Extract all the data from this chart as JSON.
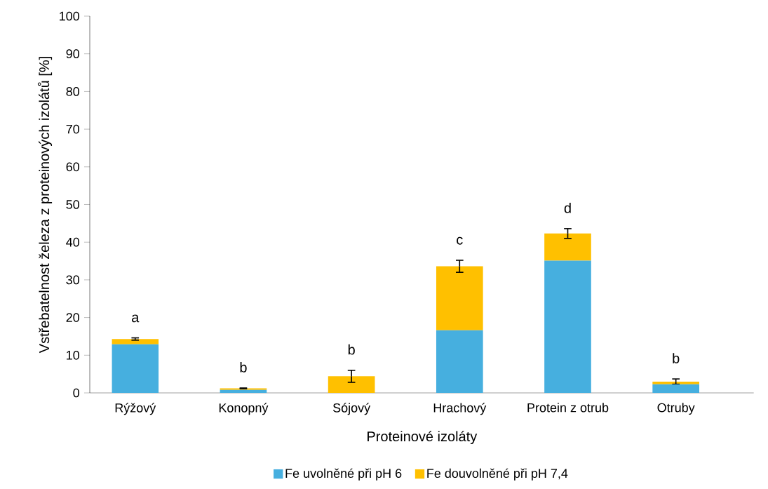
{
  "chart_data": {
    "type": "bar",
    "stacked": true,
    "xlabel": "Proteinové izoláty",
    "ylabel": "Vstřebatelnost železa z proteinových izolátů [%]",
    "categories": [
      "Rýžový",
      "Konopný",
      "Sójový",
      "Hrachový",
      "Protein z otrub",
      "Otruby"
    ],
    "series": [
      {
        "name": "Fe uvolněné při pH 6",
        "color": "#46afdf",
        "values": [
          12.9,
          0.8,
          0,
          16.6,
          35.1,
          2.3
        ]
      },
      {
        "name": "Fe douvolněné při pH 7,4",
        "color": "#ffc000",
        "values": [
          1.4,
          0.4,
          4.4,
          17.0,
          7.2,
          0.7
        ],
        "errors": [
          0.3,
          0.1,
          1.6,
          1.6,
          1.3,
          0.7
        ]
      }
    ],
    "ylim": [
      0,
      100
    ],
    "yticks": [
      0,
      10,
      20,
      30,
      40,
      50,
      60,
      70,
      80,
      90,
      100
    ],
    "legend": "bottom",
    "grid": false,
    "annotations": [
      "a",
      "b",
      "b",
      "c",
      "d",
      "b"
    ]
  }
}
